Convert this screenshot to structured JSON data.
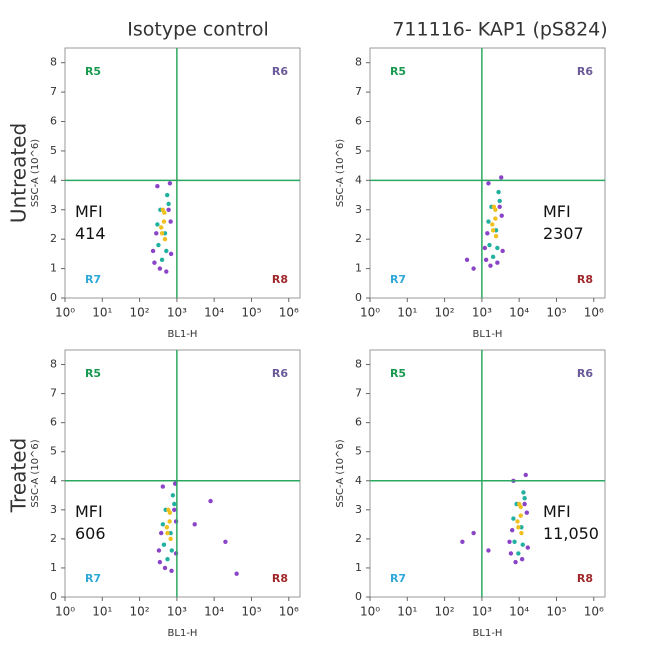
{
  "column_titles": [
    "Isotype control",
    "711116- KAP1 (pS824)"
  ],
  "row_titles": [
    "Untreated",
    "Treated"
  ],
  "chart_data": [
    {
      "type": "scatter",
      "xlabel": "BL1-H",
      "ylabel": "SSC-A (10^6)",
      "log_x": true,
      "xlim": [
        1,
        2000000
      ],
      "xticks": [
        {
          "value": 1,
          "label": "10⁰"
        },
        {
          "value": 10,
          "label": "10¹"
        },
        {
          "value": 100,
          "label": "10²"
        },
        {
          "value": 1000,
          "label": "10³"
        },
        {
          "value": 10000,
          "label": "10⁴"
        },
        {
          "value": 100000,
          "label": "10⁵"
        },
        {
          "value": 1000000,
          "label": "10⁶"
        }
      ],
      "ylim": [
        0,
        8.5
      ],
      "yticks": [
        0,
        1,
        2,
        3,
        4,
        5,
        6,
        7,
        8
      ],
      "gates": {
        "x": 1000,
        "y": 4
      },
      "gate_color": "#2aa860",
      "regions": [
        {
          "label": "R5",
          "color": "#1a9a50"
        },
        {
          "label": "R6",
          "color": "#6a5a9a"
        },
        {
          "label": "R7",
          "color": "#30a8d8"
        },
        {
          "label": "R8",
          "color": "#a0282a"
        }
      ],
      "annotation": [
        "MFI",
        "414"
      ],
      "series": [
        {
          "color": "#8a44c8",
          "x": [
            250,
            300,
            650,
            700,
            280,
            600,
            350,
            520,
            230,
            680
          ],
          "values": [
            1.2,
            3.8,
            3.9,
            1.5,
            2.2,
            3.0,
            1.0,
            0.9,
            1.6,
            2.6
          ]
        },
        {
          "color": "#22b0a0",
          "x": [
            320,
            550,
            400,
            480,
            360,
            520,
            300,
            600
          ],
          "values": [
            1.8,
            3.5,
            1.3,
            2.2,
            3.0,
            1.6,
            2.5,
            3.2
          ]
        },
        {
          "color": "#f0c020",
          "x": [
            400,
            450,
            420,
            480,
            380,
            460
          ],
          "values": [
            2.2,
            2.6,
            3.0,
            2.0,
            2.4,
            2.9
          ]
        }
      ]
    },
    {
      "type": "scatter",
      "xlabel": "BL1-H",
      "ylabel": "SSC-A (10^6)",
      "log_x": true,
      "xlim": [
        1,
        2000000
      ],
      "xticks": [
        {
          "value": 1,
          "label": "10⁰"
        },
        {
          "value": 10,
          "label": "10¹"
        },
        {
          "value": 100,
          "label": "10²"
        },
        {
          "value": 1000,
          "label": "10³"
        },
        {
          "value": 10000,
          "label": "10⁴"
        },
        {
          "value": 100000,
          "label": "10⁵"
        },
        {
          "value": 1000000,
          "label": "10⁶"
        }
      ],
      "ylim": [
        0,
        8.5
      ],
      "yticks": [
        0,
        1,
        2,
        3,
        4,
        5,
        6,
        7,
        8
      ],
      "gates": {
        "x": 1000,
        "y": 4
      },
      "gate_color": "#2aa860",
      "regions": [
        {
          "label": "R5",
          "color": "#1a9a50"
        },
        {
          "label": "R6",
          "color": "#6a5a9a"
        },
        {
          "label": "R7",
          "color": "#30a8d8"
        },
        {
          "label": "R8",
          "color": "#a0282a"
        }
      ],
      "annotation": [
        "MFI",
        "2307"
      ],
      "series": [
        {
          "color": "#8a44c8",
          "x": [
            1300,
            1500,
            3300,
            3600,
            1400,
            3000,
            1700,
            2600,
            1200,
            3400,
            400,
            600
          ],
          "values": [
            1.3,
            3.9,
            4.1,
            1.6,
            2.2,
            3.1,
            1.1,
            1.2,
            1.7,
            2.8,
            1.3,
            1.0
          ]
        },
        {
          "color": "#22b0a0",
          "x": [
            1600,
            2800,
            2000,
            2400,
            1800,
            2600,
            1500,
            3000
          ],
          "values": [
            1.8,
            3.6,
            1.4,
            2.3,
            3.1,
            1.7,
            2.6,
            3.3
          ]
        },
        {
          "color": "#f0c020",
          "x": [
            2000,
            2300,
            2100,
            2400,
            1900,
            2300
          ],
          "values": [
            2.3,
            2.7,
            3.1,
            2.1,
            2.5,
            3.0
          ]
        }
      ]
    },
    {
      "type": "scatter",
      "xlabel": "BL1-H",
      "ylabel": "SSC-A (10^6)",
      "log_x": true,
      "xlim": [
        1,
        2000000
      ],
      "xticks": [
        {
          "value": 1,
          "label": "10⁰"
        },
        {
          "value": 10,
          "label": "10¹"
        },
        {
          "value": 100,
          "label": "10²"
        },
        {
          "value": 1000,
          "label": "10³"
        },
        {
          "value": 10000,
          "label": "10⁴"
        },
        {
          "value": 100000,
          "label": "10⁵"
        },
        {
          "value": 1000000,
          "label": "10⁶"
        }
      ],
      "ylim": [
        0,
        8.5
      ],
      "yticks": [
        0,
        1,
        2,
        3,
        4,
        5,
        6,
        7,
        8
      ],
      "gates": {
        "x": 1000,
        "y": 4
      },
      "gate_color": "#2aa860",
      "regions": [
        {
          "label": "R5",
          "color": "#1a9a50"
        },
        {
          "label": "R6",
          "color": "#6a5a9a"
        },
        {
          "label": "R7",
          "color": "#30a8d8"
        },
        {
          "label": "R8",
          "color": "#a0282a"
        }
      ],
      "annotation": [
        "MFI",
        "606"
      ],
      "series": [
        {
          "color": "#8a44c8",
          "x": [
            350,
            420,
            900,
            950,
            380,
            850,
            480,
            720,
            330,
            950,
            3000,
            8000,
            20000,
            40000
          ],
          "values": [
            1.2,
            3.8,
            3.9,
            1.5,
            2.2,
            3.0,
            1.0,
            0.9,
            1.6,
            2.6,
            2.5,
            3.3,
            1.9,
            0.8
          ]
        },
        {
          "color": "#22b0a0",
          "x": [
            450,
            780,
            560,
            680,
            500,
            730,
            420,
            850
          ],
          "values": [
            1.8,
            3.5,
            1.3,
            2.2,
            3.0,
            1.6,
            2.5,
            3.2
          ]
        },
        {
          "color": "#f0c020",
          "x": [
            560,
            640,
            590,
            680,
            540,
            650
          ],
          "values": [
            2.2,
            2.6,
            3.0,
            2.0,
            2.4,
            2.9
          ]
        }
      ]
    },
    {
      "type": "scatter",
      "xlabel": "BL1-H",
      "ylabel": "SSC-A (10^6)",
      "log_x": true,
      "xlim": [
        1,
        2000000
      ],
      "xticks": [
        {
          "value": 1,
          "label": "10⁰"
        },
        {
          "value": 10,
          "label": "10¹"
        },
        {
          "value": 100,
          "label": "10²"
        },
        {
          "value": 1000,
          "label": "10³"
        },
        {
          "value": 10000,
          "label": "10⁴"
        },
        {
          "value": 100000,
          "label": "10⁵"
        },
        {
          "value": 1000000,
          "label": "10⁶"
        }
      ],
      "ylim": [
        0,
        8.5
      ],
      "yticks": [
        0,
        1,
        2,
        3,
        4,
        5,
        6,
        7,
        8
      ],
      "gates": {
        "x": 1000,
        "y": 4
      },
      "gate_color": "#2aa860",
      "regions": [
        {
          "label": "R5",
          "color": "#1a9a50"
        },
        {
          "label": "R6",
          "color": "#6a5a9a"
        },
        {
          "label": "R7",
          "color": "#30a8d8"
        },
        {
          "label": "R8",
          "color": "#a0282a"
        }
      ],
      "annotation": [
        "MFI",
        "11,050"
      ],
      "series": [
        {
          "color": "#8a44c8",
          "x": [
            6000,
            7000,
            15000,
            17000,
            6500,
            14000,
            8000,
            12000,
            5500,
            16000,
            300,
            600,
            1500
          ],
          "values": [
            1.5,
            4.0,
            4.2,
            1.7,
            2.3,
            3.2,
            1.2,
            1.3,
            1.9,
            2.9,
            1.9,
            2.2,
            1.6
          ]
        },
        {
          "color": "#22b0a0",
          "x": [
            7500,
            13000,
            9500,
            11500,
            8500,
            12500,
            7000,
            14000
          ],
          "values": [
            1.9,
            3.6,
            1.5,
            2.4,
            3.2,
            1.8,
            2.7,
            3.4
          ]
        },
        {
          "color": "#f0c020",
          "x": [
            9500,
            11000,
            10000,
            11500,
            9000,
            11000
          ],
          "values": [
            2.4,
            2.8,
            3.2,
            2.2,
            2.6,
            3.1
          ]
        }
      ]
    }
  ]
}
